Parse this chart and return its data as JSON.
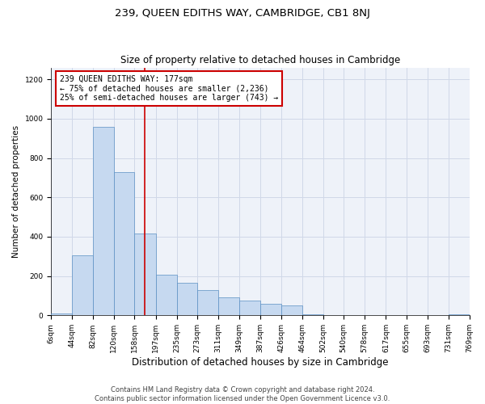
{
  "title": "239, QUEEN EDITHS WAY, CAMBRIDGE, CB1 8NJ",
  "subtitle": "Size of property relative to detached houses in Cambridge",
  "xlabel": "Distribution of detached houses by size in Cambridge",
  "ylabel": "Number of detached properties",
  "property_size": 177,
  "annotation_line1": "239 QUEEN EDITHS WAY: 177sqm",
  "annotation_line2": "← 75% of detached houses are smaller (2,236)",
  "annotation_line3": "25% of semi-detached houses are larger (743) →",
  "bin_labels": [
    "6sqm",
    "44sqm",
    "82sqm",
    "120sqm",
    "158sqm",
    "197sqm",
    "235sqm",
    "273sqm",
    "311sqm",
    "349sqm",
    "387sqm",
    "426sqm",
    "464sqm",
    "502sqm",
    "540sqm",
    "578sqm",
    "617sqm",
    "655sqm",
    "693sqm",
    "731sqm",
    "769sqm"
  ],
  "bar_values": [
    10,
    305,
    960,
    730,
    415,
    205,
    165,
    130,
    90,
    75,
    60,
    50,
    5,
    2,
    0,
    0,
    0,
    0,
    0,
    5
  ],
  "bin_edges": [
    6,
    44,
    82,
    120,
    158,
    197,
    235,
    273,
    311,
    349,
    387,
    426,
    464,
    502,
    540,
    578,
    617,
    655,
    693,
    731,
    769
  ],
  "bar_color": "#c6d9f0",
  "bar_edge_color": "#5a8fc3",
  "red_line_color": "#cc0000",
  "grid_color": "#d0d8e8",
  "background_color": "#eef2f9",
  "ylim": [
    0,
    1260
  ],
  "yticks": [
    0,
    200,
    400,
    600,
    800,
    1000,
    1200
  ],
  "footer_line1": "Contains HM Land Registry data © Crown copyright and database right 2024.",
  "footer_line2": "Contains public sector information licensed under the Open Government Licence v3.0.",
  "title_fontsize": 9.5,
  "subtitle_fontsize": 8.5,
  "ylabel_fontsize": 7.5,
  "xlabel_fontsize": 8.5,
  "tick_fontsize": 6.5,
  "annot_fontsize": 7,
  "footer_fontsize": 6
}
